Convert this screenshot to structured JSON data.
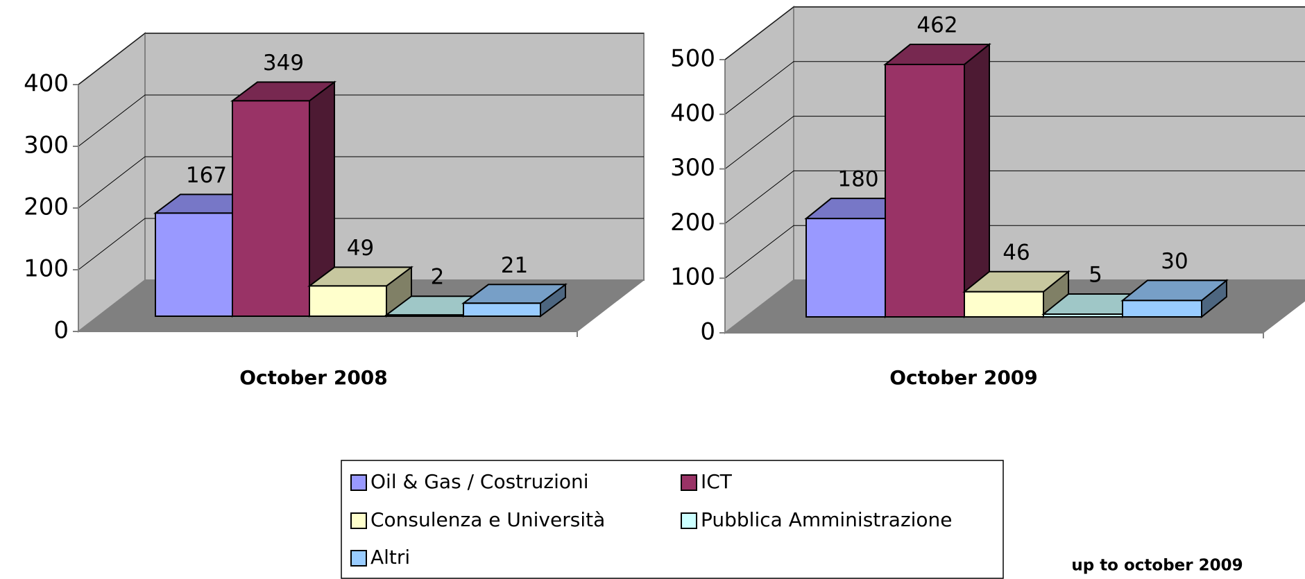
{
  "chart_data": [
    {
      "type": "bar",
      "categories": [
        "October 2008"
      ],
      "series": [
        {
          "name": "Oil & Gas / Costruzioni",
          "color": "#9999ff",
          "values": [
            167
          ]
        },
        {
          "name": "ICT",
          "color": "#993366",
          "values": [
            349
          ]
        },
        {
          "name": "Consulenza e Università",
          "color": "#ffffcc",
          "values": [
            49
          ]
        },
        {
          "name": "Pubblica Amministrazione",
          "color": "#ccffff",
          "values": [
            2
          ]
        },
        {
          "name": "Altri",
          "color": "#99ccff",
          "values": [
            21
          ]
        }
      ],
      "ylim": [
        0,
        400
      ],
      "yticks": [
        0,
        100,
        200,
        300,
        400
      ],
      "grid": true
    },
    {
      "type": "bar",
      "categories": [
        "October 2009"
      ],
      "series": [
        {
          "color": "#9999ff",
          "values": [
            180
          ]
        },
        {
          "color": "#993366",
          "values": [
            462
          ]
        },
        {
          "color": "#ffffcc",
          "values": [
            46
          ]
        },
        {
          "color": "#ccffff",
          "values": [
            5
          ]
        },
        {
          "color": "#99ccff",
          "values": [
            30
          ]
        }
      ],
      "ylim": [
        0,
        500
      ],
      "yticks": [
        0,
        100,
        200,
        300,
        400,
        500
      ],
      "grid": true
    }
  ],
  "footnote": "up to october 2009"
}
